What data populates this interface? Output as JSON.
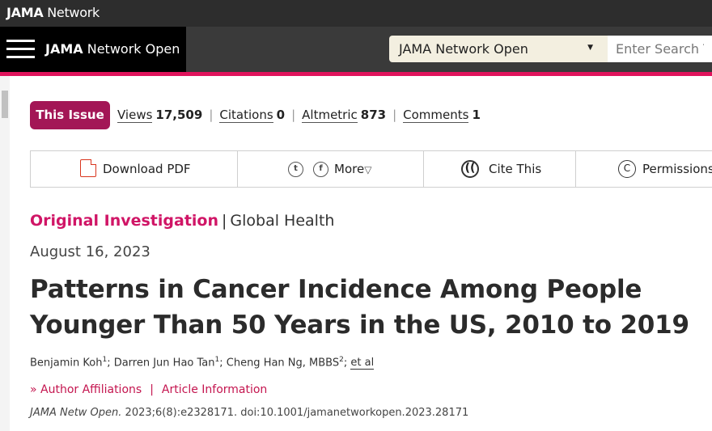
{
  "topbar": {
    "brand_bold": "JAMA",
    "brand_rest": " Network"
  },
  "navbar": {
    "journal_bold": "JAMA",
    "journal_rest": " Network Open",
    "select_value": "JAMA Network Open",
    "search_placeholder": "Enter Search Term"
  },
  "article_bar": {
    "issue_button": "This Issue",
    "metrics": [
      {
        "label": "Views",
        "value": "17,509"
      },
      {
        "label": "Citations",
        "value": "0"
      },
      {
        "label": "Altmetric",
        "value": "873"
      },
      {
        "label": "Comments",
        "value": "1"
      }
    ]
  },
  "toolbar": {
    "download": "Download PDF",
    "twitter_icon": "t",
    "facebook_icon": "f",
    "more": "More",
    "more_caret": "▽",
    "cite_icon": "(( ",
    "cite": "Cite This",
    "permissions_icon": "C",
    "permissions": "Permissions"
  },
  "article": {
    "type": "Original Investigation",
    "pipe": "|",
    "category": "Global Health",
    "date": "August 16, 2023",
    "title": "Patterns in Cancer Incidence Among People Younger Than 50 Years in the US, 2010 to 2019",
    "authors": [
      {
        "name": "Benjamin Koh",
        "sup": "1",
        "sep": "; "
      },
      {
        "name": "Darren Jun Hao Tan",
        "sup": "1",
        "sep": "; "
      },
      {
        "name": "Cheng Han Ng, MBBS",
        "sup": "2",
        "sep": "; "
      }
    ],
    "et_al": "et al",
    "author_affiliations": "Author Affiliations",
    "links_bar": "|",
    "article_information": "Article Information",
    "journal_abbrev": "JAMA Netw Open.",
    "citation_rest": " 2023;6(8):e2328171. doi:10.1001/jamanetworkopen.2023.28171"
  },
  "colors": {
    "accent": "#e0145c",
    "issue_button": "#a31656",
    "link": "#c4154f"
  }
}
